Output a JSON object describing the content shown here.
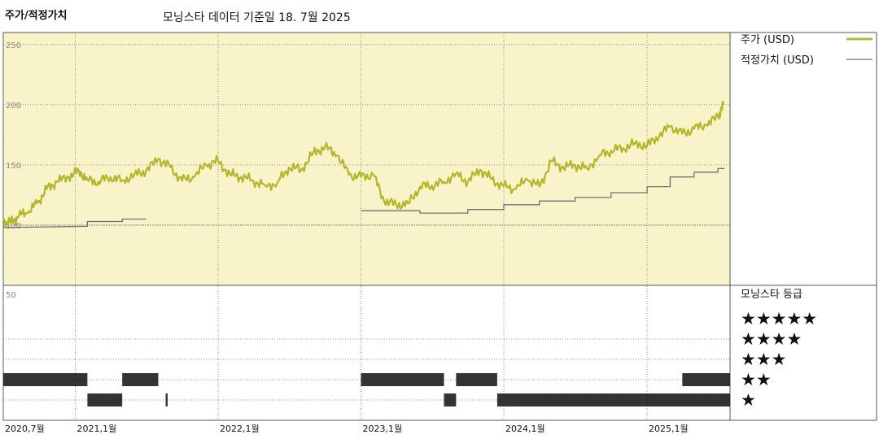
{
  "header": {
    "title": "주가/적정가치",
    "subtitle": "모닝스타 데이터 기준일 18. 7월 2025"
  },
  "legend": {
    "price_label": "주가 (USD)",
    "fair_value_label": "적정가치 (USD)",
    "rating_title": "모닝스타 등급",
    "stars": [
      "★★★★★",
      "★★★★",
      "★★★",
      "★★",
      "★"
    ]
  },
  "colors": {
    "price": "#b3b82a",
    "fair_value": "#707070",
    "upper_bg": "#f8f3c8",
    "rating_bar": "#111111"
  },
  "chart_data": {
    "type": "line",
    "xlim": [
      "2020-07-01",
      "2025-08-01"
    ],
    "ylim": [
      50,
      260
    ],
    "y_ticks": [
      100,
      150,
      200,
      250
    ],
    "x_ticks": [
      {
        "date": "2020-07-01",
        "label": "2020,7월"
      },
      {
        "date": "2021-01-01",
        "label": "2021,1월"
      },
      {
        "date": "2022-01-01",
        "label": "2022,1월"
      },
      {
        "date": "2023-01-01",
        "label": "2023,1월"
      },
      {
        "date": "2024-01-01",
        "label": "2024,1월"
      },
      {
        "date": "2025-01-01",
        "label": "2025,1월"
      }
    ],
    "series": [
      {
        "name": "주가 (USD)",
        "points": [
          [
            "2020-07-01",
            104
          ],
          [
            "2020-07-20",
            102
          ],
          [
            "2020-08-10",
            108
          ],
          [
            "2020-09-01",
            110
          ],
          [
            "2020-09-25",
            118
          ],
          [
            "2020-10-20",
            130
          ],
          [
            "2020-11-15",
            136
          ],
          [
            "2020-12-15",
            140
          ],
          [
            "2021-01-10",
            145
          ],
          [
            "2021-02-01",
            138
          ],
          [
            "2021-03-01",
            136
          ],
          [
            "2021-04-01",
            140
          ],
          [
            "2021-05-01",
            137
          ],
          [
            "2021-06-01",
            142
          ],
          [
            "2021-07-01",
            145
          ],
          [
            "2021-08-01",
            155
          ],
          [
            "2021-09-01",
            148
          ],
          [
            "2021-10-01",
            137
          ],
          [
            "2021-11-01",
            140
          ],
          [
            "2021-12-01",
            150
          ],
          [
            "2022-01-01",
            153
          ],
          [
            "2022-02-01",
            142
          ],
          [
            "2022-03-01",
            140
          ],
          [
            "2022-04-01",
            137
          ],
          [
            "2022-05-01",
            133
          ],
          [
            "2022-06-01",
            135
          ],
          [
            "2022-07-01",
            148
          ],
          [
            "2022-08-01",
            146
          ],
          [
            "2022-09-01",
            160
          ],
          [
            "2022-10-01",
            165
          ],
          [
            "2022-11-01",
            158
          ],
          [
            "2022-12-01",
            142
          ],
          [
            "2023-01-01",
            140
          ],
          [
            "2023-02-01",
            142
          ],
          [
            "2023-03-01",
            120
          ],
          [
            "2023-04-01",
            117
          ],
          [
            "2023-05-01",
            118
          ],
          [
            "2023-06-01",
            132
          ],
          [
            "2023-07-01",
            133
          ],
          [
            "2023-08-01",
            136
          ],
          [
            "2023-09-01",
            143
          ],
          [
            "2023-10-01",
            136
          ],
          [
            "2023-11-01",
            146
          ],
          [
            "2023-12-01",
            138
          ],
          [
            "2024-01-01",
            132
          ],
          [
            "2024-02-01",
            130
          ],
          [
            "2024-03-01",
            138
          ],
          [
            "2024-04-01",
            132
          ],
          [
            "2024-05-01",
            153
          ],
          [
            "2024-06-01",
            148
          ],
          [
            "2024-07-01",
            150
          ],
          [
            "2024-08-01",
            147
          ],
          [
            "2024-09-01",
            158
          ],
          [
            "2024-10-01",
            162
          ],
          [
            "2024-11-01",
            164
          ],
          [
            "2024-12-01",
            168
          ],
          [
            "2025-01-01",
            166
          ],
          [
            "2025-02-01",
            174
          ],
          [
            "2025-03-01",
            182
          ],
          [
            "2025-04-01",
            176
          ],
          [
            "2025-05-01",
            180
          ],
          [
            "2025-06-01",
            183
          ],
          [
            "2025-07-01",
            190
          ],
          [
            "2025-07-15",
            200
          ]
        ]
      },
      {
        "name": "적정가치 (USD)",
        "segments": [
          [
            [
              "2020-07-01",
              98
            ],
            [
              "2021-02-01",
              99
            ],
            [
              "2021-02-01",
              103
            ],
            [
              "2021-05-01",
              103
            ],
            [
              "2021-05-01",
              105
            ],
            [
              "2021-07-01",
              105
            ]
          ],
          [
            [
              "2023-01-01",
              112
            ],
            [
              "2023-06-01",
              112
            ],
            [
              "2023-06-01",
              110
            ],
            [
              "2023-10-01",
              110
            ],
            [
              "2023-10-01",
              113
            ],
            [
              "2024-01-01",
              113
            ],
            [
              "2024-01-01",
              117
            ],
            [
              "2024-04-01",
              117
            ],
            [
              "2024-04-01",
              120
            ],
            [
              "2024-07-01",
              120
            ],
            [
              "2024-07-01",
              123
            ],
            [
              "2024-10-01",
              123
            ],
            [
              "2024-10-01",
              127
            ],
            [
              "2025-01-01",
              127
            ],
            [
              "2025-01-01",
              132
            ],
            [
              "2025-03-01",
              132
            ],
            [
              "2025-03-01",
              140
            ],
            [
              "2025-05-01",
              140
            ],
            [
              "2025-05-01",
              144
            ],
            [
              "2025-07-01",
              144
            ],
            [
              "2025-07-01",
              147
            ],
            [
              "2025-07-18",
              147
            ]
          ]
        ]
      }
    ],
    "rating_ticks": [
      50
    ],
    "star_ratings": [
      {
        "start": "2020-07-01",
        "end": "2021-02-01",
        "stars": 2
      },
      {
        "start": "2021-02-01",
        "end": "2021-05-01",
        "stars": 1
      },
      {
        "start": "2021-05-01",
        "end": "2021-08-01",
        "stars": 2
      },
      {
        "start": "2021-08-20",
        "end": "2021-08-25",
        "stars": 1
      },
      {
        "start": "2023-01-01",
        "end": "2023-08-01",
        "stars": 2
      },
      {
        "start": "2023-08-01",
        "end": "2023-09-01",
        "stars": 1
      },
      {
        "start": "2023-09-01",
        "end": "2023-12-15",
        "stars": 2
      },
      {
        "start": "2023-12-15",
        "end": "2025-08-01",
        "stars": 1
      },
      {
        "start": "2025-04-01",
        "end": "2025-08-01",
        "stars": 2
      }
    ]
  }
}
